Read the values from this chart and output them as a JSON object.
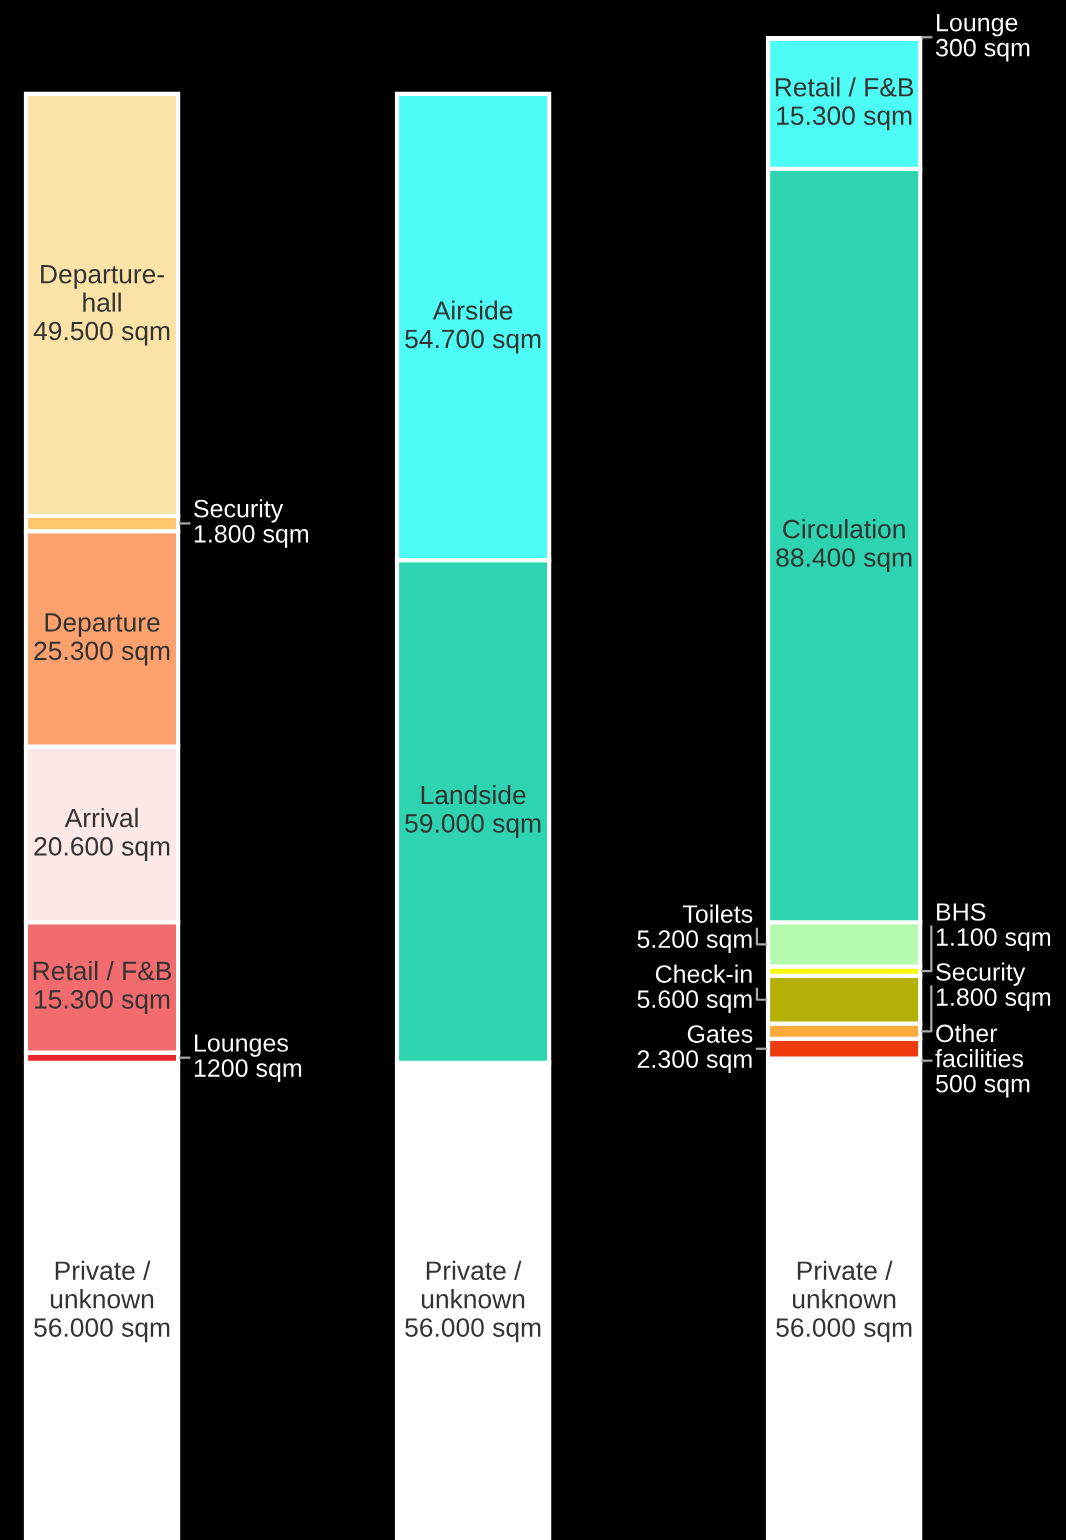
{
  "chart_data": {
    "type": "bar",
    "stacked": true,
    "categories": [
      null,
      null,
      null
    ],
    "series": [
      {
        "name": "Private / unknown",
        "color": "#ffffff",
        "values": [
          56000,
          56000,
          56000
        ],
        "value_labels": [
          "56.000 sqm",
          "56.000 sqm",
          "56.000 sqm"
        ]
      },
      {
        "name": "Lounges",
        "color": "#e8262a",
        "values": [
          1200,
          null,
          null
        ],
        "value_labels": [
          "1200 sqm",
          null,
          null
        ]
      },
      {
        "name": "Retail / F&B",
        "color": "#f26b6e",
        "values": [
          15300,
          null,
          null
        ],
        "value_labels": [
          "15.300 sqm",
          null,
          null
        ]
      },
      {
        "name": "Arrival",
        "color": "#fde8e8",
        "values": [
          20600,
          null,
          null
        ],
        "value_labels": [
          "20.600 sqm",
          null,
          null
        ]
      },
      {
        "name": "Departure",
        "color": "#fca06e",
        "values": [
          25300,
          null,
          null
        ],
        "value_labels": [
          "25.300 sqm",
          null,
          null
        ]
      },
      {
        "name": "Security",
        "color": "#fec76c",
        "values": [
          1800,
          null,
          null
        ],
        "value_labels": [
          "1.800 sqm",
          null,
          null
        ]
      },
      {
        "name": "Departure-hall",
        "color": "#fbe3a7",
        "values": [
          49500,
          null,
          null
        ],
        "value_labels": [
          "49.500 sqm",
          null,
          null
        ]
      },
      {
        "name": "Landside",
        "color": "#2ed3b0",
        "values": [
          null,
          59000,
          null
        ],
        "value_labels": [
          null,
          "59.000 sqm",
          null
        ]
      },
      {
        "name": "Airside",
        "color": "#4dfdf5",
        "values": [
          null,
          54700,
          null
        ],
        "value_labels": [
          null,
          "54.700 sqm",
          null
        ]
      },
      {
        "name": "Other facilities",
        "color": "#b32a0a",
        "values": [
          null,
          null,
          500
        ],
        "value_labels": [
          null,
          null,
          "500 sqm"
        ]
      },
      {
        "name": "Gates",
        "color": "#ee3a0c",
        "values": [
          null,
          null,
          2300
        ],
        "value_labels": [
          null,
          null,
          "2.300 sqm"
        ]
      },
      {
        "name": "Security",
        "color": "#fcaa3a",
        "values": [
          null,
          null,
          1800
        ],
        "value_labels": [
          null,
          null,
          "1.800 sqm"
        ]
      },
      {
        "name": "Check-in",
        "color": "#b4b006",
        "values": [
          null,
          null,
          5600
        ],
        "value_labels": [
          null,
          null,
          "5.600 sqm"
        ]
      },
      {
        "name": "BHS",
        "color": "#f8f808",
        "values": [
          null,
          null,
          1100
        ],
        "value_labels": [
          null,
          null,
          "1.100 sqm"
        ]
      },
      {
        "name": "Toilets",
        "color": "#b4fbb0",
        "values": [
          null,
          null,
          5200
        ],
        "value_labels": [
          null,
          null,
          "5.200 sqm"
        ]
      },
      {
        "name": "Circulation",
        "color": "#2ed3b0",
        "values": [
          null,
          null,
          88400
        ],
        "value_labels": [
          null,
          null,
          "88.400 sqm"
        ]
      },
      {
        "name": "Retail / F&B",
        "color": "#4dfdf5",
        "values": [
          null,
          null,
          15300
        ],
        "value_labels": [
          null,
          null,
          "15.300 sqm"
        ]
      },
      {
        "name": "Lounge",
        "color": "#00e8e8",
        "values": [
          null,
          null,
          300
        ],
        "value_labels": [
          null,
          null,
          "300 sqm"
        ]
      }
    ]
  }
}
